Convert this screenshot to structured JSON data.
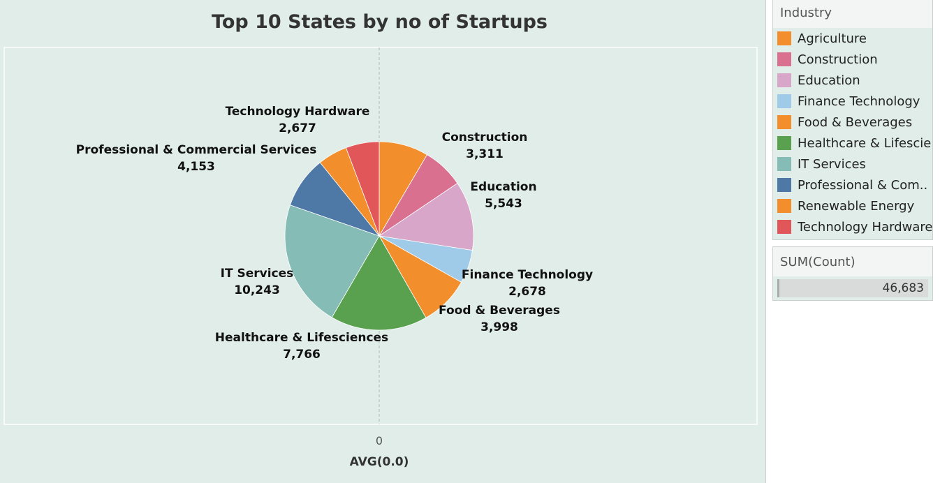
{
  "chart_data": {
    "type": "pie",
    "title": "Top 10 States by no of Startups",
    "categories": [
      "Agriculture",
      "Construction",
      "Education",
      "Finance Technology",
      "Food & Beverages",
      "Healthcare & Lifesciences",
      "IT Services",
      "Professional & Commercial Services",
      "Renewable Energy",
      "Technology Hardware"
    ],
    "values": [
      3956,
      3311,
      5543,
      2678,
      3998,
      7766,
      10243,
      4153,
      2358,
      2677
    ],
    "colors": [
      "#f28e2b",
      "#d9708f",
      "#d7a6c9",
      "#a0cbe8",
      "#f28e2b",
      "#59a14f",
      "#86bcb6",
      "#4e79a7",
      "#f28e2b",
      "#e15759"
    ],
    "slice_labels": [
      {
        "name": "",
        "value": ""
      },
      {
        "name": "Construction",
        "value": "3,311"
      },
      {
        "name": "Education",
        "value": "5,543"
      },
      {
        "name": "Finance Technology",
        "value": "2,678"
      },
      {
        "name": "Food & Beverages",
        "value": "3,998"
      },
      {
        "name": "Healthcare & Lifesciences",
        "value": "7,766"
      },
      {
        "name": "IT Services",
        "value": "10,243"
      },
      {
        "name": "Professional & Commercial Services",
        "value": "4,153"
      },
      {
        "name": "",
        "value": ""
      },
      {
        "name": "Technology Hardware",
        "value": "2,677"
      }
    ],
    "x_tick": "0",
    "xlabel": "AVG(0.0)"
  },
  "legend": {
    "title": "Industry",
    "items": [
      {
        "label": "Agriculture",
        "color": "#f28e2b"
      },
      {
        "label": "Construction",
        "color": "#d9708f"
      },
      {
        "label": "Education",
        "color": "#d7a6c9"
      },
      {
        "label": "Finance Technology",
        "color": "#a0cbe8"
      },
      {
        "label": "Food & Beverages",
        "color": "#f28e2b"
      },
      {
        "label": "Healthcare & Lifescie..",
        "color": "#59a14f"
      },
      {
        "label": "IT Services",
        "color": "#86bcb6"
      },
      {
        "label": "Professional & Com..",
        "color": "#4e79a7"
      },
      {
        "label": "Renewable Energy",
        "color": "#f28e2b"
      },
      {
        "label": "Technology Hardware",
        "color": "#e15759"
      }
    ]
  },
  "size_legend": {
    "title": "SUM(Count)",
    "value": "46,683"
  }
}
